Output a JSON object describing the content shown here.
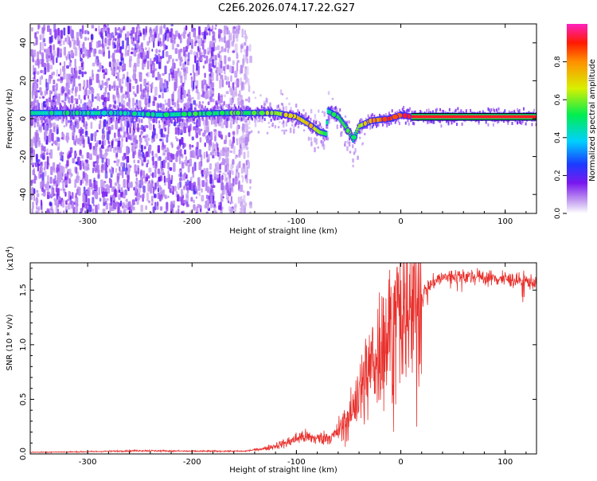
{
  "title": "C2E6.2026.074.17.22.G27",
  "chart_data": [
    {
      "type": "heatmap",
      "name": "spectrogram",
      "xlabel": "Height of straight line (km)",
      "ylabel": "Frequency (Hz)",
      "xlim": [
        -355,
        130
      ],
      "ylim": [
        -50,
        50
      ],
      "xticks": [
        -300,
        -200,
        -100,
        0,
        100
      ],
      "xtick_labels": [
        "-300",
        "-200",
        "-100",
        "0",
        "100"
      ],
      "yticks": [
        -40,
        -20,
        0,
        20,
        40
      ],
      "ytick_labels": [
        "-40",
        "-20",
        "0",
        "20",
        "40"
      ],
      "colorbar": {
        "label": "Normalized spectral amplitude",
        "range": [
          0,
          1
        ],
        "ticks": [
          0.0,
          0.2,
          0.4,
          0.6,
          0.8
        ],
        "tick_labels": [
          "0.0",
          "0.2",
          "0.4",
          "0.6",
          "0.8"
        ]
      },
      "noise_region_km": [
        -355,
        -145
      ],
      "ridge": [
        {
          "x": -355,
          "f": 3,
          "a": 0.45
        },
        {
          "x": -330,
          "f": 3,
          "a": 0.45
        },
        {
          "x": -300,
          "f": 3,
          "a": 0.45
        },
        {
          "x": -270,
          "f": 3,
          "a": 0.4
        },
        {
          "x": -230,
          "f": 2,
          "a": 0.45
        },
        {
          "x": -200,
          "f": 2.5,
          "a": 0.48
        },
        {
          "x": -170,
          "f": 3,
          "a": 0.5
        },
        {
          "x": -145,
          "f": 3,
          "a": 0.52
        },
        {
          "x": -120,
          "f": 3,
          "a": 0.6
        },
        {
          "x": -100,
          "f": 1,
          "a": 0.7
        },
        {
          "x": -88,
          "f": -3,
          "a": 0.72
        },
        {
          "x": -78,
          "f": -7,
          "a": 0.6
        },
        {
          "x": -72,
          "f": -8,
          "a": 0.5
        },
        {
          "x": -70,
          "f": 4,
          "a": 0.45
        },
        {
          "x": -60,
          "f": 1,
          "a": 0.55
        },
        {
          "x": -52,
          "f": -5,
          "a": 0.55
        },
        {
          "x": -46,
          "f": -11,
          "a": 0.45
        },
        {
          "x": -40,
          "f": -4,
          "a": 0.6
        },
        {
          "x": -28,
          "f": -1,
          "a": 0.75
        },
        {
          "x": -10,
          "f": 0,
          "a": 0.9
        },
        {
          "x": 0,
          "f": 2,
          "a": 0.8
        },
        {
          "x": 10,
          "f": 1,
          "a": 0.9
        },
        {
          "x": 130,
          "f": 1,
          "a": 0.95
        }
      ]
    },
    {
      "type": "line",
      "name": "snr",
      "xlabel": "Height of straight line (km)",
      "ylabel": "SNR (10 * v/v)",
      "y_exponent_label": "(x10",
      "y_exponent_power": "4",
      "y_exponent_close": ")",
      "xlim": [
        -355,
        130
      ],
      "ylim": [
        0,
        17500
      ],
      "xticks": [
        -300,
        -200,
        -100,
        0,
        100
      ],
      "xtick_labels": [
        "-300",
        "-200",
        "-100",
        "0",
        "100"
      ],
      "yticks": [
        0,
        5000,
        10000,
        15000
      ],
      "ytick_labels": [
        "0.0",
        "0.5",
        "1.0",
        "1.5"
      ],
      "series_color": "#e8302c",
      "envelope": [
        {
          "x": -355,
          "y": 150
        },
        {
          "x": -300,
          "y": 200
        },
        {
          "x": -250,
          "y": 300
        },
        {
          "x": -200,
          "y": 250
        },
        {
          "x": -150,
          "y": 250
        },
        {
          "x": -130,
          "y": 500
        },
        {
          "x": -110,
          "y": 1000
        },
        {
          "x": -95,
          "y": 1600
        },
        {
          "x": -80,
          "y": 1400
        },
        {
          "x": -65,
          "y": 1600
        },
        {
          "x": -55,
          "y": 2500
        },
        {
          "x": -45,
          "y": 4000
        },
        {
          "x": -35,
          "y": 6500
        },
        {
          "x": -25,
          "y": 9000
        },
        {
          "x": -15,
          "y": 10500
        },
        {
          "x": -5,
          "y": 11500
        },
        {
          "x": 5,
          "y": 12500
        },
        {
          "x": 15,
          "y": 13800
        },
        {
          "x": 25,
          "y": 15200
        },
        {
          "x": 35,
          "y": 16000
        },
        {
          "x": 50,
          "y": 16300
        },
        {
          "x": 75,
          "y": 16200
        },
        {
          "x": 100,
          "y": 16000
        },
        {
          "x": 120,
          "y": 15800
        },
        {
          "x": 130,
          "y": 15700
        }
      ]
    }
  ]
}
